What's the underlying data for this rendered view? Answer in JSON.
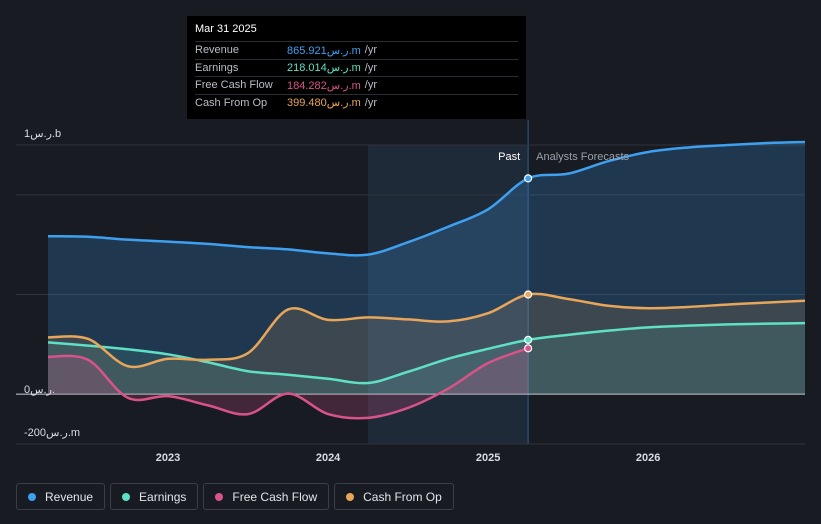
{
  "tooltip": {
    "date": "Mar 31 2025",
    "rows": [
      {
        "name": "Revenue",
        "value": "865.921ر.س.m",
        "unit": "/yr",
        "color": "#3ea0f0"
      },
      {
        "name": "Earnings",
        "value": "218.014ر.س.m",
        "unit": "/yr",
        "color": "#5fe0c5"
      },
      {
        "name": "Free Cash Flow",
        "value": "184.282ر.س.m",
        "unit": "/yr",
        "color": "#d9538a"
      },
      {
        "name": "Cash From Op",
        "value": "399.480ر.س.m",
        "unit": "/yr",
        "color": "#e7a659"
      }
    ]
  },
  "legend": [
    {
      "label": "Revenue",
      "color": "#3ea0f0"
    },
    {
      "label": "Earnings",
      "color": "#5fe0c5"
    },
    {
      "label": "Free Cash Flow",
      "color": "#d9538a"
    },
    {
      "label": "Cash From Op",
      "color": "#e7a659"
    }
  ],
  "chart_data": {
    "type": "line",
    "title": "",
    "xlabel": "",
    "ylabel": "",
    "y_unit": "SAR millions",
    "ylim": [
      -200,
      1000
    ],
    "xlim": [
      2022.25,
      2026.98
    ],
    "x_ticks": [
      2023,
      2024,
      2025,
      2026
    ],
    "x_tick_labels": [
      "2023",
      "2024",
      "2025",
      "2026"
    ],
    "y_tick_labels": [
      "1ر.س.b",
      "0ر.س.",
      "-200ر.س.m"
    ],
    "past_label": "Past",
    "forecast_label": "Analysts Forecasts",
    "highlight_start": 2024.25,
    "forecast_start": 2025.25,
    "series": [
      {
        "name": "Revenue",
        "color": "#3ea0f0",
        "x": [
          2022.25,
          2022.5,
          2022.75,
          2023.0,
          2023.25,
          2023.5,
          2023.75,
          2024.0,
          2024.25,
          2024.5,
          2024.75,
          2025.0,
          2025.25,
          2025.5,
          2025.75,
          2026.0,
          2026.25,
          2026.5,
          2026.75,
          2026.98
        ],
        "y": [
          634,
          632,
          620,
          612,
          603,
          590,
          581,
          565,
          560,
          610,
          672,
          742,
          866,
          885,
          935,
          972,
          990,
          1000,
          1008,
          1012
        ]
      },
      {
        "name": "Earnings",
        "color": "#5fe0c5",
        "x": [
          2022.25,
          2022.5,
          2022.75,
          2023.0,
          2023.25,
          2023.5,
          2023.75,
          2024.0,
          2024.25,
          2024.5,
          2024.75,
          2025.0,
          2025.25,
          2025.5,
          2025.75,
          2026.0,
          2026.25,
          2026.5,
          2026.75,
          2026.98
        ],
        "y": [
          208,
          195,
          180,
          160,
          128,
          92,
          78,
          62,
          45,
          90,
          142,
          182,
          218,
          238,
          255,
          268,
          275,
          280,
          283,
          285
        ]
      },
      {
        "name": "Free Cash Flow",
        "color": "#d9538a",
        "x": [
          2022.25,
          2022.5,
          2022.75,
          2023.0,
          2023.25,
          2023.5,
          2023.75,
          2024.0,
          2024.25,
          2024.5,
          2024.75,
          2025.0,
          2025.25
        ],
        "y": [
          150,
          138,
          -15,
          -8,
          -45,
          -80,
          2,
          -80,
          -95,
          -55,
          22,
          125,
          184
        ]
      },
      {
        "name": "Cash From Op",
        "color": "#e7a659",
        "x": [
          2022.25,
          2022.5,
          2022.75,
          2023.0,
          2023.25,
          2023.5,
          2023.75,
          2024.0,
          2024.25,
          2024.5,
          2024.75,
          2025.0,
          2025.25,
          2025.5,
          2025.75,
          2026.0,
          2026.25,
          2026.5,
          2026.75,
          2026.98
        ],
        "y": [
          228,
          222,
          112,
          142,
          138,
          165,
          340,
          298,
          308,
          300,
          292,
          325,
          400,
          382,
          355,
          345,
          350,
          360,
          368,
          375
        ]
      }
    ]
  }
}
